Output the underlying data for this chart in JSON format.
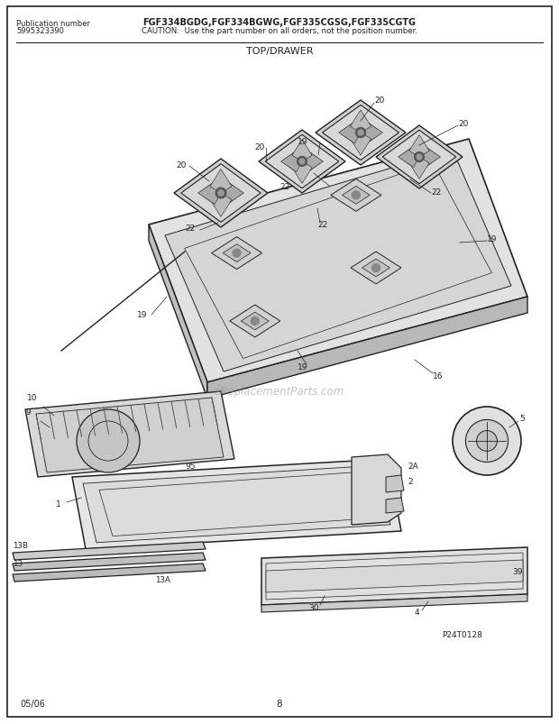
{
  "title": "TOP/DRAWER",
  "pub_number_line1": "Publication number",
  "pub_number_line2": "5995323390",
  "model_text": "FGF334BGDG,FGF334BGWG,FGF335CGSG,FGF335CGTG",
  "caution_text": "CAUTION:  Use the part number on all orders, not the position number.",
  "watermark": "eReplacementParts.com",
  "page_number": "8",
  "date_code": "05/06",
  "diagram_ref": "P24T0128",
  "bg_color": "#ffffff",
  "border_color": "#000000",
  "line_color": "#222222",
  "fig_width": 6.2,
  "fig_height": 8.04,
  "dpi": 100
}
